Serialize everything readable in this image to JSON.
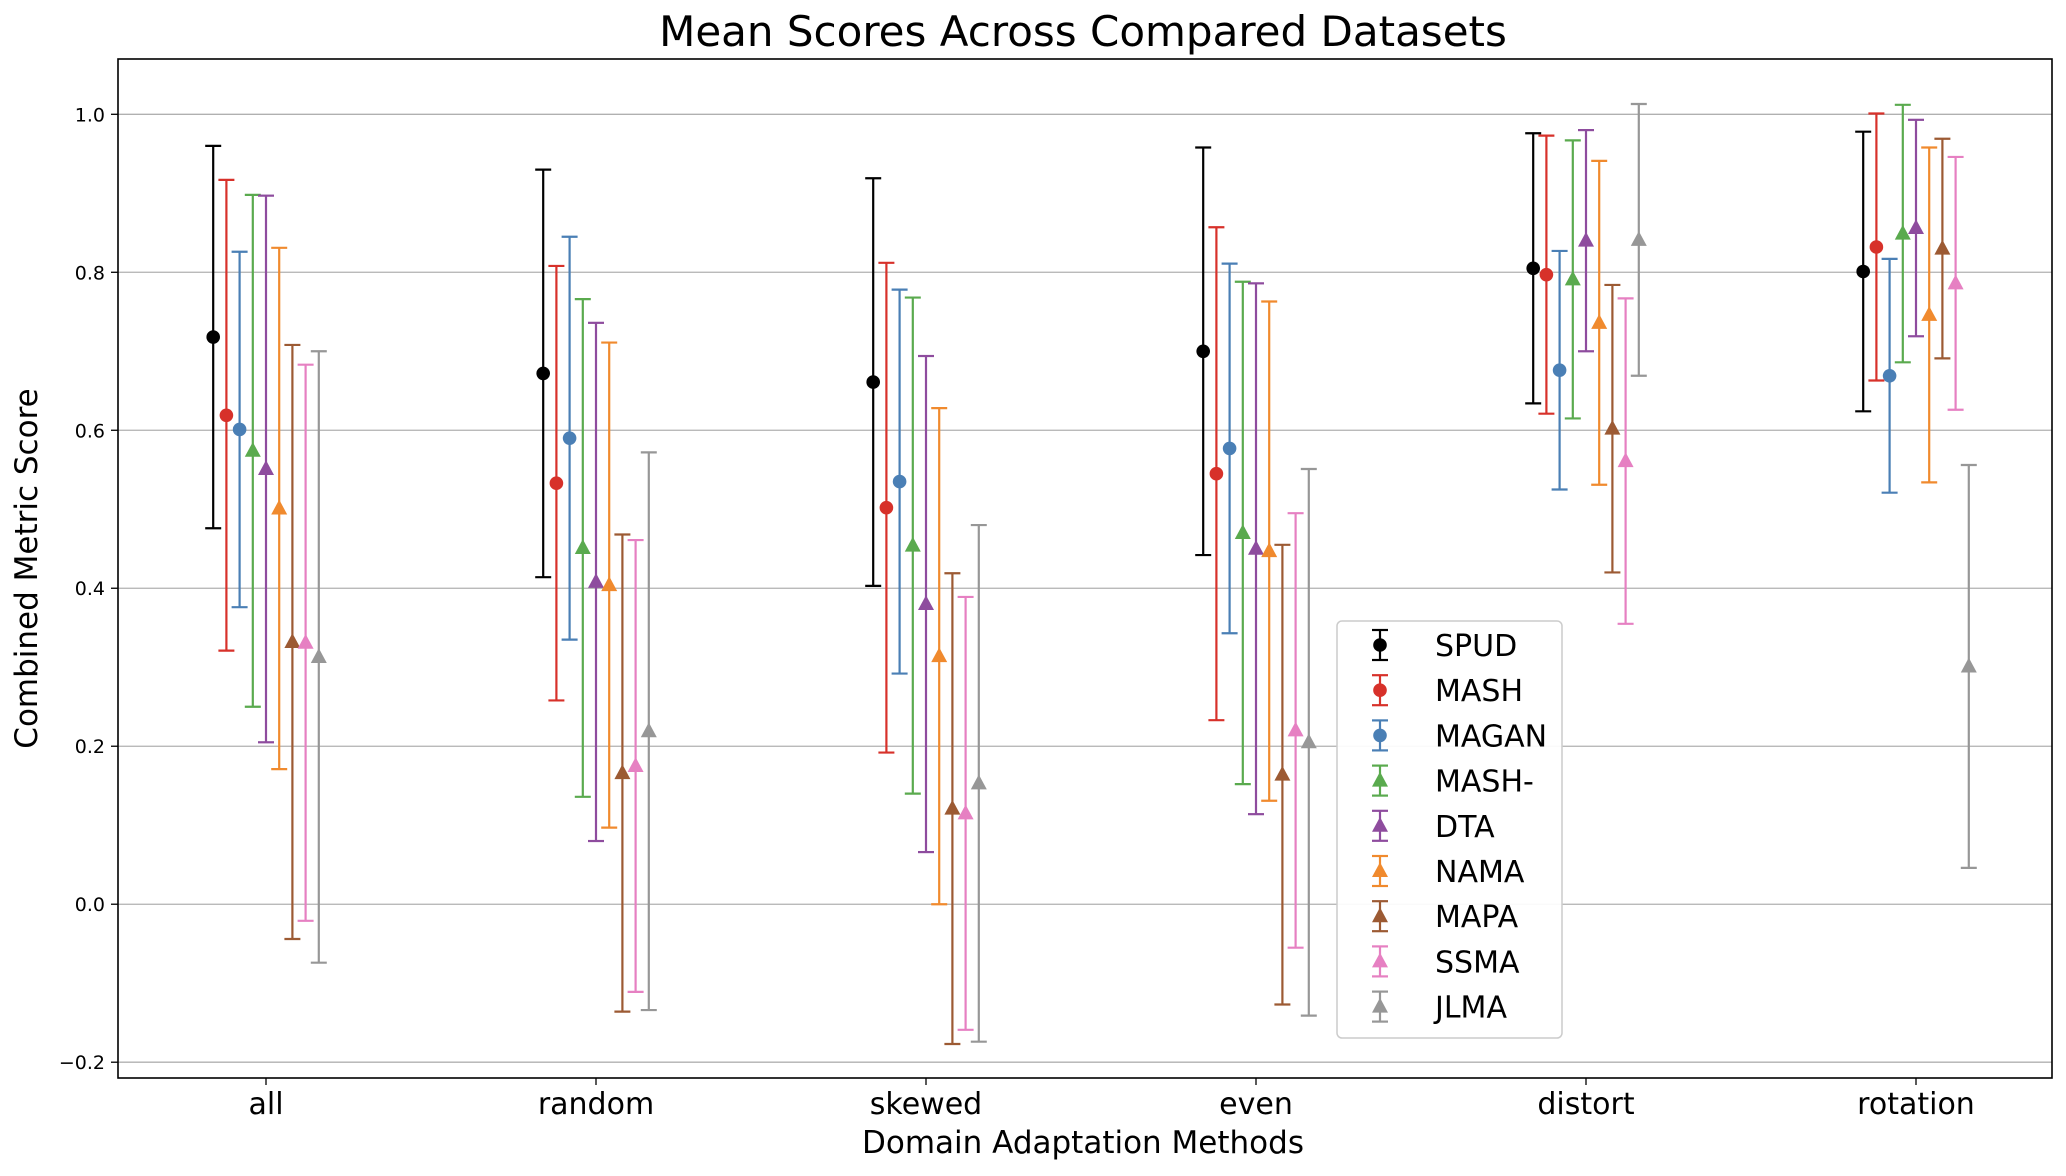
{
  "chart_data": {
    "type": "scatter",
    "title": "Mean Scores Across Compared Datasets",
    "xlabel": "Domain Adaptation Methods",
    "ylabel": "Combined Metric Score",
    "categories": [
      "all",
      "random",
      "skewed",
      "even",
      "distort",
      "rotation"
    ],
    "ylim": [
      -0.22,
      1.07
    ],
    "yticks": [
      -0.2,
      0.0,
      0.2,
      0.4,
      0.6,
      0.8,
      1.0
    ],
    "ytick_labels": [
      "−0.2",
      "0.0",
      "0.2",
      "0.4",
      "0.6",
      "0.8",
      "1.0"
    ],
    "grid": "horizontal",
    "legend_position": "lower-center",
    "series": [
      {
        "name": "SPUD",
        "color": "#000000",
        "marker": "circle",
        "mean": [
          0.718,
          0.672,
          0.661,
          0.7,
          0.805,
          0.801
        ],
        "err": [
          0.242,
          0.258,
          0.258,
          0.258,
          0.171,
          0.177
        ]
      },
      {
        "name": "MASH",
        "color": "#d7312a",
        "marker": "circle",
        "mean": [
          0.619,
          0.533,
          0.502,
          0.545,
          0.797,
          0.832
        ],
        "err": [
          0.298,
          0.275,
          0.31,
          0.312,
          0.176,
          0.169
        ]
      },
      {
        "name": "MAGAN",
        "color": "#4a7fb5",
        "marker": "circle",
        "mean": [
          0.601,
          0.59,
          0.535,
          0.577,
          0.676,
          0.669
        ],
        "err": [
          0.225,
          0.255,
          0.243,
          0.234,
          0.151,
          0.148
        ]
      },
      {
        "name": "MASH-",
        "color": "#5aaa4e",
        "marker": "triangle",
        "mean": [
          0.574,
          0.451,
          0.454,
          0.47,
          0.791,
          0.849
        ],
        "err": [
          0.324,
          0.315,
          0.314,
          0.318,
          0.176,
          0.163
        ]
      },
      {
        "name": "DTA",
        "color": "#8e4c9e",
        "marker": "triangle",
        "mean": [
          0.551,
          0.408,
          0.38,
          0.45,
          0.84,
          0.856
        ],
        "err": [
          0.346,
          0.328,
          0.314,
          0.336,
          0.14,
          0.137
        ]
      },
      {
        "name": "NAMA",
        "color": "#f08a2e",
        "marker": "triangle",
        "mean": [
          0.501,
          0.404,
          0.314,
          0.447,
          0.736,
          0.746
        ],
        "err": [
          0.33,
          0.307,
          0.314,
          0.316,
          0.205,
          0.212
        ]
      },
      {
        "name": "MAPA",
        "color": "#9c5a33",
        "marker": "triangle",
        "mean": [
          0.332,
          0.166,
          0.121,
          0.164,
          0.602,
          0.83
        ],
        "err": [
          0.376,
          0.302,
          0.298,
          0.291,
          0.182,
          0.139
        ]
      },
      {
        "name": "SSMA",
        "color": "#e680c2",
        "marker": "triangle",
        "mean": [
          0.331,
          0.175,
          0.115,
          0.22,
          0.561,
          0.786
        ],
        "err": [
          0.352,
          0.286,
          0.274,
          0.275,
          0.206,
          0.16
        ]
      },
      {
        "name": "JLMA",
        "color": "#979797",
        "marker": "triangle",
        "mean": [
          0.313,
          0.219,
          0.153,
          0.205,
          0.841,
          0.301
        ],
        "err": [
          0.387,
          0.353,
          0.327,
          0.346,
          0.172,
          0.255
        ]
      }
    ]
  }
}
